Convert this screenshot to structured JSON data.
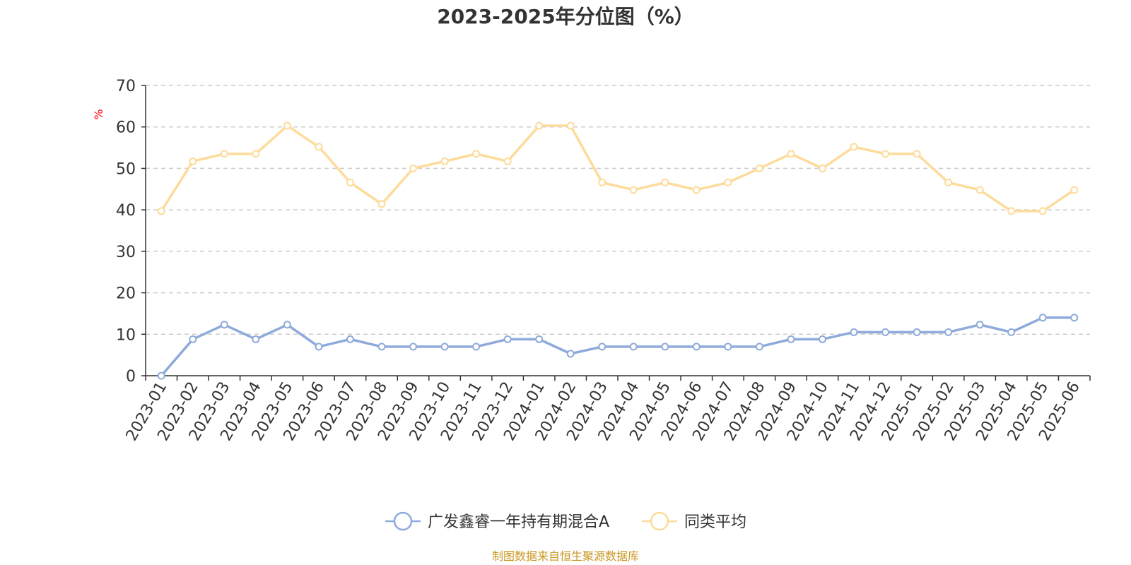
{
  "chart_data": {
    "type": "line",
    "title": "2023-2025年分位图（%）",
    "ylabel": "%",
    "xlabel": "",
    "ylim": [
      0,
      70
    ],
    "yticks": [
      0,
      10,
      20,
      30,
      40,
      50,
      60,
      70
    ],
    "grid": true,
    "legend_position": "bottom",
    "categories": [
      "2023-01",
      "2023-02",
      "2023-03",
      "2023-04",
      "2023-05",
      "2023-06",
      "2023-07",
      "2023-08",
      "2023-09",
      "2023-10",
      "2023-11",
      "2023-12",
      "2024-01",
      "2024-02",
      "2024-03",
      "2024-04",
      "2024-05",
      "2024-06",
      "2024-07",
      "2024-08",
      "2024-09",
      "2024-10",
      "2024-11",
      "2024-12",
      "2025-01",
      "2025-02",
      "2025-03",
      "2025-04",
      "2025-05",
      "2025-06"
    ],
    "series": [
      {
        "name": "广发鑫睿一年持有期混合A",
        "color": "#8eaadb",
        "values": [
          0,
          8.8,
          12.3,
          8.8,
          12.3,
          7.0,
          8.8,
          7.0,
          7.0,
          7.0,
          7.0,
          8.8,
          8.8,
          5.3,
          7.0,
          7.0,
          7.0,
          7.0,
          7.0,
          7.0,
          8.8,
          8.8,
          10.5,
          10.5,
          10.5,
          10.5,
          12.3,
          10.5,
          14.0,
          14.0
        ]
      },
      {
        "name": "同类平均",
        "color": "#fddb9b",
        "values": [
          39.7,
          51.7,
          53.5,
          53.5,
          60.3,
          55.2,
          46.6,
          41.4,
          50.0,
          51.7,
          53.5,
          51.7,
          60.3,
          60.3,
          46.6,
          44.8,
          46.6,
          44.8,
          46.6,
          50.0,
          53.5,
          50.0,
          55.2,
          53.5,
          53.5,
          46.6,
          44.8,
          39.7,
          39.7,
          44.8
        ]
      }
    ]
  },
  "footer": {
    "source": "制图数据来自恒生聚源数据库"
  },
  "colors": {
    "axis": "#333333",
    "grid": "#cccccc",
    "ylabel": "#ff0000",
    "source": "#c8961e"
  }
}
